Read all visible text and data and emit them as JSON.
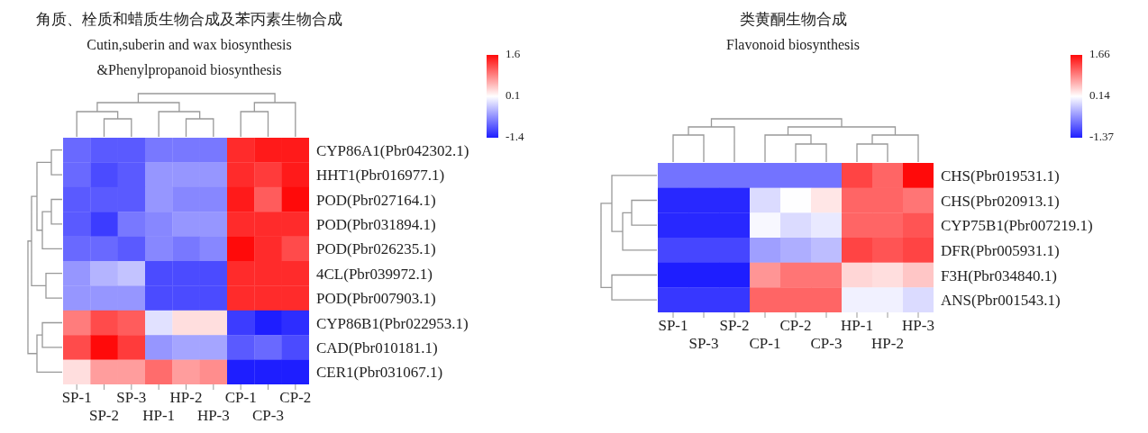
{
  "chart_data": [
    {
      "type": "heatmap",
      "title": "角质、栓质和蜡质生物合成及苯丙素生物合成",
      "subtitle": "Cutin,suberin and wax biosynthesis\n&Phenylpropanoid biosynthesis",
      "categories": [
        "SP-1",
        "SP-2",
        "SP-3",
        "HP-1",
        "HP-2",
        "HP-3",
        "CP-1",
        "CP-3",
        "CP-2"
      ],
      "y_categories": [
        "CYP86A1(Pbr042302.1)",
        "HHT1(Pbr016977.1)",
        "POD(Pbr027164.1)",
        "POD(Pbr031894.1)",
        "POD(Pbr026235.1)",
        "4CL(Pbr039972.1)",
        "POD(Pbr007903.1)",
        "CYP86B1(Pbr022953.1)",
        "CAD(Pbr010181.1)",
        "CER1(Pbr031067.1)"
      ],
      "cells": [
        [
          -0.9,
          -1.0,
          -1.0,
          -0.8,
          -0.8,
          -0.8,
          1.4,
          1.5,
          1.5
        ],
        [
          -0.9,
          -1.1,
          -1.0,
          -0.6,
          -0.6,
          -0.6,
          1.4,
          1.3,
          1.5
        ],
        [
          -1.0,
          -1.0,
          -1.0,
          -0.6,
          -0.7,
          -0.7,
          1.5,
          1.1,
          1.6
        ],
        [
          -1.0,
          -1.2,
          -0.8,
          -0.7,
          -0.6,
          -0.6,
          1.4,
          1.4,
          1.4
        ],
        [
          -0.9,
          -0.9,
          -1.0,
          -0.7,
          -0.8,
          -0.7,
          1.6,
          1.4,
          1.2
        ],
        [
          -0.6,
          -0.4,
          -0.3,
          -1.1,
          -1.1,
          -1.1,
          1.4,
          1.4,
          1.4
        ],
        [
          -0.6,
          -0.6,
          -0.6,
          -1.1,
          -1.1,
          -1.1,
          1.4,
          1.4,
          1.4
        ],
        [
          0.9,
          1.2,
          1.1,
          -0.1,
          0.3,
          0.3,
          -1.2,
          -1.4,
          -1.3
        ],
        [
          1.2,
          1.6,
          1.3,
          -0.6,
          -0.5,
          -0.5,
          -1.0,
          -0.9,
          -1.1
        ],
        [
          0.3,
          0.7,
          0.7,
          1.0,
          0.7,
          0.8,
          -1.4,
          -1.4,
          -1.4
        ]
      ],
      "clim": [
        -1.4,
        1.6
      ],
      "cticks": [
        1.6,
        0.1,
        -1.4
      ]
    },
    {
      "type": "heatmap",
      "title": "类黄酮生物合成",
      "subtitle": "Flavonoid biosynthesis",
      "categories": [
        "SP-1",
        "SP-3",
        "SP-2",
        "CP-1",
        "CP-2",
        "CP-3",
        "HP-1",
        "HP-2",
        "HP-3"
      ],
      "y_categories": [
        "CHS(Pbr019531.1)",
        "CHS(Pbr020913.1)",
        "CYP75B1(Pbr007219.1)",
        "DFR(Pbr005931.1)",
        "F3H(Pbr034840.1)",
        "ANS(Pbr001543.1)"
      ],
      "cells": [
        [
          -0.8,
          -0.8,
          -0.8,
          -0.8,
          -0.8,
          -0.8,
          1.3,
          1.1,
          1.66
        ],
        [
          -1.3,
          -1.3,
          -1.3,
          -0.1,
          0.14,
          0.3,
          1.1,
          1.1,
          1.0
        ],
        [
          -1.3,
          -1.3,
          -1.3,
          0.1,
          -0.1,
          0.0,
          1.1,
          1.1,
          1.2
        ],
        [
          -1.1,
          -1.1,
          -1.1,
          -0.5,
          -0.4,
          -0.3,
          1.3,
          1.2,
          1.3
        ],
        [
          -1.37,
          -1.37,
          -1.37,
          0.8,
          1.0,
          1.0,
          0.4,
          0.35,
          0.5
        ],
        [
          -1.2,
          -1.2,
          -1.2,
          1.1,
          1.1,
          1.1,
          0.05,
          0.05,
          -0.1
        ]
      ],
      "clim": [
        -1.37,
        1.66
      ],
      "cticks": [
        1.66,
        0.14,
        -1.37
      ]
    }
  ]
}
